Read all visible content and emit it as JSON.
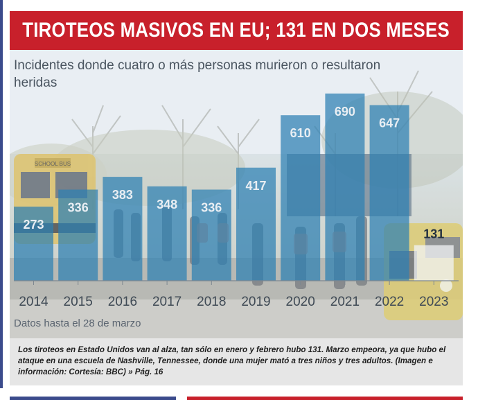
{
  "header": {
    "title": "TIROTEOS MASIVOS EN EU; 131 EN DOS MESES"
  },
  "chart_data": {
    "type": "bar",
    "title": "TIROTEOS MASIVOS EN EU; 131 EN DOS MESES",
    "subtitle": "Incidentes donde cuatro o más personas murieron o resultaron heridas",
    "categories": [
      "2014",
      "2015",
      "2016",
      "2017",
      "2018",
      "2019",
      "2020",
      "2021",
      "2022",
      "2023"
    ],
    "values": [
      273,
      336,
      383,
      348,
      336,
      417,
      610,
      690,
      647,
      131
    ],
    "xlabel": "",
    "ylabel": "",
    "ylim": [
      0,
      700
    ],
    "note": "Datos hasta el 28 de marzo",
    "bar_color": "#2d7fb3",
    "highlight_last": true
  },
  "caption": {
    "text": "Los tiroteos en Estado Unidos van al alza, tan sólo en enero y febrero hubo 131. Marzo empeora, ya que hubo el ataque en una escuela de Nashville, Tennessee, donde una mujer mató a tres niños y tres adultos. (Imagen e información: Cortesía: BBC) » Pág. 16"
  },
  "colors": {
    "title_band": "#c8202b",
    "bar": "#2d7fb3",
    "caption_bg": "#e6e6e6"
  }
}
